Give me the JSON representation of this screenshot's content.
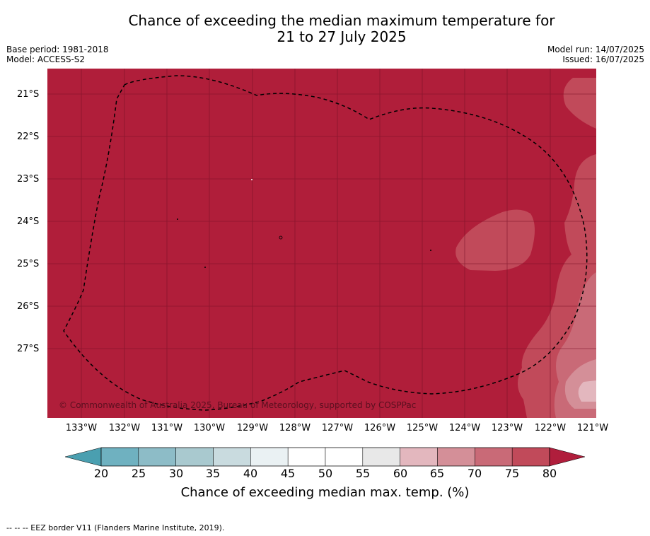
{
  "title": "Chance of exceeding the median maximum temperature for",
  "title_line2": "21 to 27 July 2025",
  "base_period": "Base period: 1981-2018",
  "model": "Model: ACCESS-S2",
  "model_run": "Model run: 14/07/2025",
  "issued": "Issued: 16/07/2025",
  "copyright": "© Commonwealth of Australia 2025, Bureau of Meteorology, supported by COSPPac",
  "footnote": "-- -- -- EEZ border V11 (Flanders Marine Institute, 2019).",
  "latitudes": [
    "21°S",
    "22°S",
    "23°S",
    "24°S",
    "25°S",
    "26°S",
    "27°S"
  ],
  "longitudes": [
    "133°W",
    "132°W",
    "131°W",
    "130°W",
    "129°W",
    "128°W",
    "127°W",
    "126°W",
    "125°W",
    "124°W",
    "123°W",
    "122°W",
    "121°W"
  ],
  "colorbar": {
    "title": "Chance of exceeding median max. temp. (%)",
    "ticks": [
      "20",
      "25",
      "30",
      "35",
      "40",
      "45",
      "50",
      "55",
      "60",
      "65",
      "70",
      "75",
      "80"
    ],
    "low_color": "#4a9fb0",
    "high_color": "#b01e3c",
    "colors": [
      "#6fb1c0",
      "#8dbcc7",
      "#a9c9cf",
      "#c9dbdf",
      "#eaf1f3",
      "#ffffff",
      "#ffffff",
      "#e8e8e8",
      "#e3b7be",
      "#d48f98",
      "#c96a77",
      "#c14a5a"
    ]
  },
  "map": {
    "background_color": "#b01e3a",
    "boundary": "EEZ border (dashed)"
  }
}
